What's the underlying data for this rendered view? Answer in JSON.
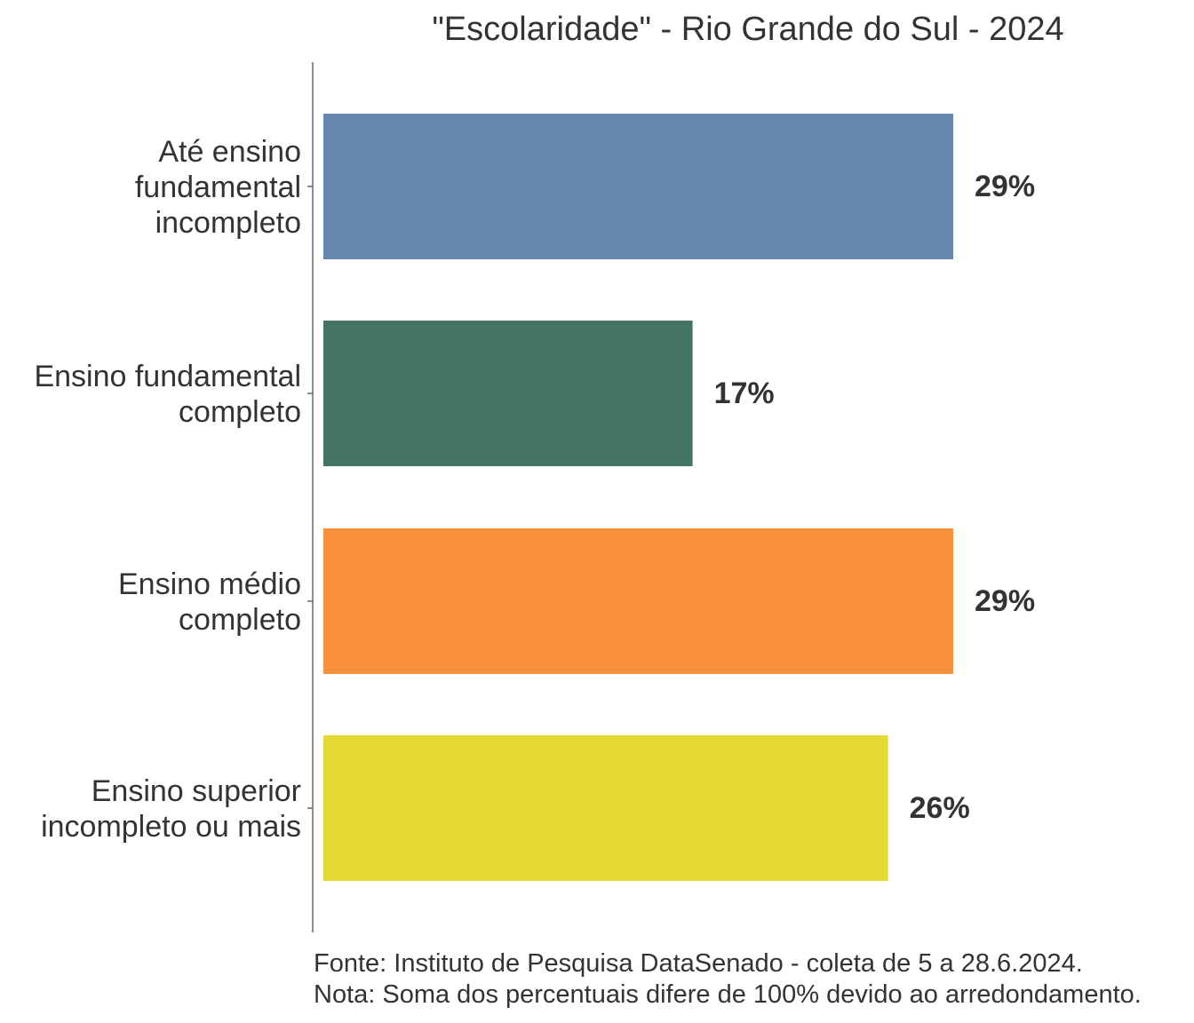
{
  "chart_data": {
    "type": "bar",
    "orientation": "horizontal",
    "title": "\"Escolaridade\" - Rio Grande do Sul - 2024",
    "categories": [
      [
        "Até ensino",
        "fundamental",
        "incompleto"
      ],
      [
        "Ensino fundamental",
        "completo"
      ],
      [
        "Ensino médio",
        "completo"
      ],
      [
        "Ensino superior",
        "incompleto ou mais"
      ]
    ],
    "values": [
      29,
      17,
      29,
      26
    ],
    "value_labels": [
      "29%",
      "17%",
      "29%",
      "26%"
    ],
    "colors": [
      "#6488b0",
      "#447563",
      "#f9913d",
      "#e4d935"
    ],
    "xlim": [
      0,
      30
    ],
    "grid": false,
    "legend": "none"
  },
  "footnotes": {
    "source": "Fonte: Instituto de Pesquisa DataSenado - coleta de 5 a 28.6.2024.",
    "note": "Nota: Soma dos percentuais difere de 100% devido ao arredondamento."
  },
  "text_color": "#333333",
  "axis_color": "#666666"
}
